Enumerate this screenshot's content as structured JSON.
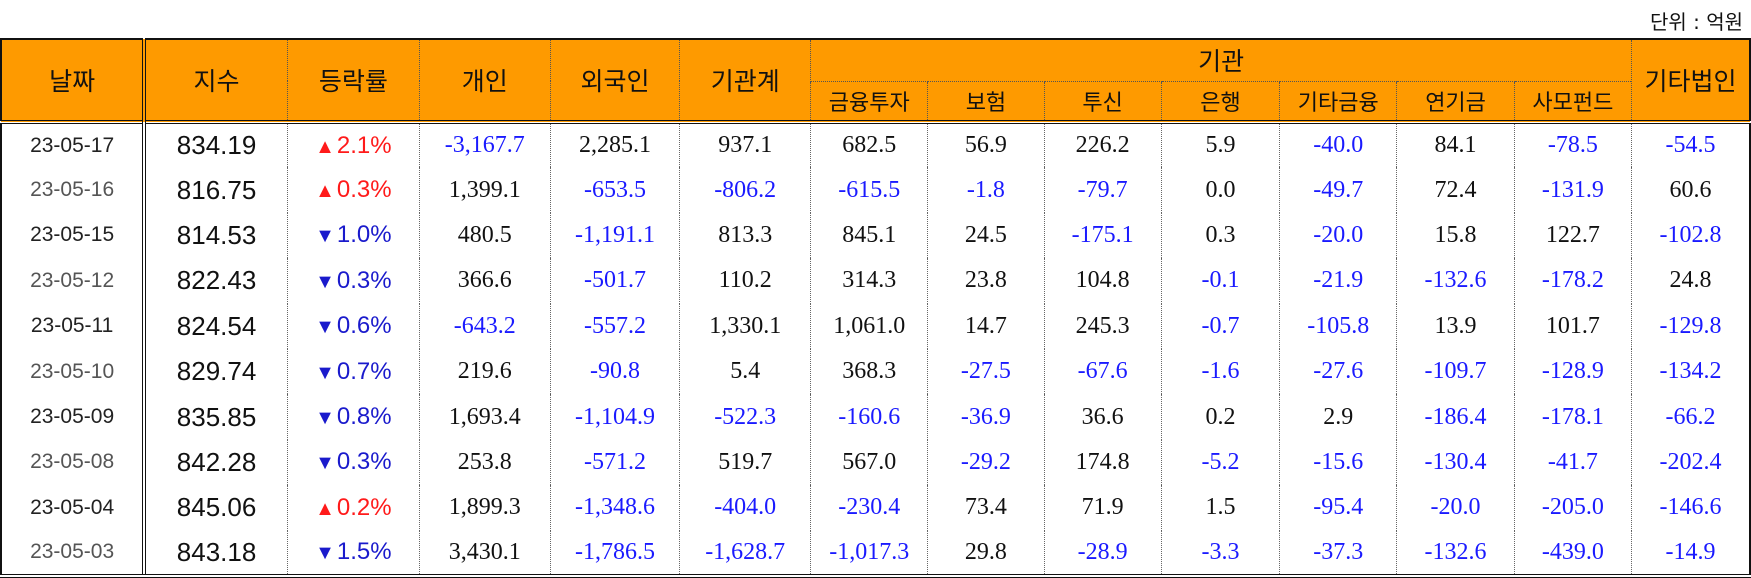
{
  "unit_label": "단위 : 억원",
  "header": {
    "date": "날짜",
    "index": "지수",
    "change": "등락률",
    "individual": "개인",
    "foreign": "외국인",
    "inst_total": "기관계",
    "inst_group": "기관",
    "financial_invest": "금융투자",
    "insurance": "보험",
    "investment_trust": "투신",
    "bank": "은행",
    "other_finance": "기타금융",
    "pension": "연기금",
    "private_fund": "사모펀드",
    "other_corp": "기타법인"
  },
  "colors": {
    "header_bg": "#fe9a00",
    "negative": "#1a1aff",
    "up": "#ff1a1a",
    "down": "#1a1acc"
  },
  "rows": [
    {
      "date": "23-05-17",
      "index": "834.19",
      "dir": "up",
      "change": "2.1%",
      "individual": "-3,167.7",
      "foreign": "2,285.1",
      "inst_total": "937.1",
      "financial_invest": "682.5",
      "insurance": "56.9",
      "investment_trust": "226.2",
      "bank": "5.9",
      "other_finance": "-40.0",
      "pension": "84.1",
      "private_fund": "-78.5",
      "other_corp": "-54.5"
    },
    {
      "date": "23-05-16",
      "index": "816.75",
      "dir": "up",
      "change": "0.3%",
      "individual": "1,399.1",
      "foreign": "-653.5",
      "inst_total": "-806.2",
      "financial_invest": "-615.5",
      "insurance": "-1.8",
      "investment_trust": "-79.7",
      "bank": "0.0",
      "other_finance": "-49.7",
      "pension": "72.4",
      "private_fund": "-131.9",
      "other_corp": "60.6"
    },
    {
      "date": "23-05-15",
      "index": "814.53",
      "dir": "down",
      "change": "1.0%",
      "individual": "480.5",
      "foreign": "-1,191.1",
      "inst_total": "813.3",
      "financial_invest": "845.1",
      "insurance": "24.5",
      "investment_trust": "-175.1",
      "bank": "0.3",
      "other_finance": "-20.0",
      "pension": "15.8",
      "private_fund": "122.7",
      "other_corp": "-102.8"
    },
    {
      "date": "23-05-12",
      "index": "822.43",
      "dir": "down",
      "change": "0.3%",
      "individual": "366.6",
      "foreign": "-501.7",
      "inst_total": "110.2",
      "financial_invest": "314.3",
      "insurance": "23.8",
      "investment_trust": "104.8",
      "bank": "-0.1",
      "other_finance": "-21.9",
      "pension": "-132.6",
      "private_fund": "-178.2",
      "other_corp": "24.8"
    },
    {
      "date": "23-05-11",
      "index": "824.54",
      "dir": "down",
      "change": "0.6%",
      "individual": "-643.2",
      "foreign": "-557.2",
      "inst_total": "1,330.1",
      "financial_invest": "1,061.0",
      "insurance": "14.7",
      "investment_trust": "245.3",
      "bank": "-0.7",
      "other_finance": "-105.8",
      "pension": "13.9",
      "private_fund": "101.7",
      "other_corp": "-129.8"
    },
    {
      "date": "23-05-10",
      "index": "829.74",
      "dir": "down",
      "change": "0.7%",
      "individual": "219.6",
      "foreign": "-90.8",
      "inst_total": "5.4",
      "financial_invest": "368.3",
      "insurance": "-27.5",
      "investment_trust": "-67.6",
      "bank": "-1.6",
      "other_finance": "-27.6",
      "pension": "-109.7",
      "private_fund": "-128.9",
      "other_corp": "-134.2"
    },
    {
      "date": "23-05-09",
      "index": "835.85",
      "dir": "down",
      "change": "0.8%",
      "individual": "1,693.4",
      "foreign": "-1,104.9",
      "inst_total": "-522.3",
      "financial_invest": "-160.6",
      "insurance": "-36.9",
      "investment_trust": "36.6",
      "bank": "0.2",
      "other_finance": "2.9",
      "pension": "-186.4",
      "private_fund": "-178.1",
      "other_corp": "-66.2"
    },
    {
      "date": "23-05-08",
      "index": "842.28",
      "dir": "down",
      "change": "0.3%",
      "individual": "253.8",
      "foreign": "-571.2",
      "inst_total": "519.7",
      "financial_invest": "567.0",
      "insurance": "-29.2",
      "investment_trust": "174.8",
      "bank": "-5.2",
      "other_finance": "-15.6",
      "pension": "-130.4",
      "private_fund": "-41.7",
      "other_corp": "-202.4"
    },
    {
      "date": "23-05-04",
      "index": "845.06",
      "dir": "up",
      "change": "0.2%",
      "individual": "1,899.3",
      "foreign": "-1,348.6",
      "inst_total": "-404.0",
      "financial_invest": "-230.4",
      "insurance": "73.4",
      "investment_trust": "71.9",
      "bank": "1.5",
      "other_finance": "-95.4",
      "pension": "-20.0",
      "private_fund": "-205.0",
      "other_corp": "-146.6"
    },
    {
      "date": "23-05-03",
      "index": "843.18",
      "dir": "down",
      "change": "1.5%",
      "individual": "3,430.1",
      "foreign": "-1,786.5",
      "inst_total": "-1,628.7",
      "financial_invest": "-1,017.3",
      "insurance": "29.8",
      "investment_trust": "-28.9",
      "bank": "-3.3",
      "other_finance": "-37.3",
      "pension": "-132.6",
      "private_fund": "-439.0",
      "other_corp": "-14.9"
    }
  ]
}
